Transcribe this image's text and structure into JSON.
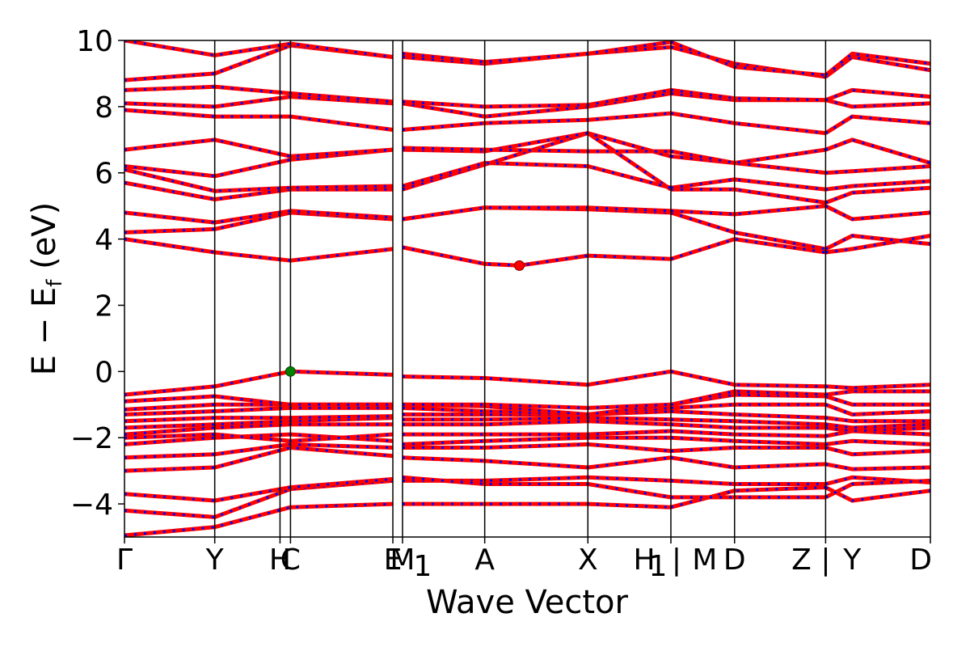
{
  "chart_data": {
    "type": "line",
    "xlabel": "Wave Vector",
    "ylabel_main": "E − E",
    "ylabel_sub": "f",
    "ylabel_unit": "(eV)",
    "ylim": [
      -5,
      10
    ],
    "yticks": [
      -4,
      -2,
      0,
      2,
      4,
      6,
      8,
      10
    ],
    "ytick_labels": [
      "−4",
      "−2",
      "0",
      "2",
      "4",
      "6",
      "8",
      "10"
    ],
    "xlim": [
      0,
      10
    ],
    "kpoint_lines": [
      1.12,
      1.93,
      2.06,
      3.33,
      3.45,
      4.47,
      5.75,
      6.78,
      7.57,
      8.7
    ],
    "kpoint_labels": [
      {
        "x": 0.0,
        "text": "Γ"
      },
      {
        "x": 1.12,
        "text": "Y"
      },
      {
        "x": 1.93,
        "text": "H"
      },
      {
        "x": 2.06,
        "text": "C"
      },
      {
        "x": 3.33,
        "text": "E"
      },
      {
        "x": 3.45,
        "text": "M"
      },
      {
        "x": 3.7,
        "text": "1"
      },
      {
        "x": 4.47,
        "text": "A"
      },
      {
        "x": 5.75,
        "text": "X"
      },
      {
        "x": 6.45,
        "text": "H"
      },
      {
        "x": 6.62,
        "text": "1"
      },
      {
        "x": 6.85,
        "text": "|"
      },
      {
        "x": 7.2,
        "text": "M"
      },
      {
        "x": 7.57,
        "text": "D"
      },
      {
        "x": 8.4,
        "text": "Z"
      },
      {
        "x": 8.7,
        "text": "|"
      },
      {
        "x": 9.03,
        "text": "Y"
      },
      {
        "x": 10.0,
        "text": "D"
      }
    ],
    "segments": [
      [
        0,
        3.33
      ],
      [
        3.45,
        6.78
      ],
      [
        6.78,
        8.7
      ],
      [
        8.7,
        10
      ]
    ],
    "band_colors": {
      "up": "#ff0000",
      "down": "#0000ff"
    },
    "cbm_marker": {
      "x": 4.9,
      "y": 3.2,
      "color": "#ff0000"
    },
    "vbm_marker": {
      "x": 2.06,
      "y": 0.0,
      "color": "#008000"
    },
    "bands": [
      {
        "x": [
          0,
          1.12,
          2.06,
          3.33,
          3.45,
          4.47,
          5.75,
          6.78,
          7.57,
          8.7,
          9.03,
          10
        ],
        "y": [
          -4.95,
          -4.7,
          -4.1,
          -4.0,
          -4.0,
          -4.0,
          -4.0,
          -4.1,
          -3.6,
          -3.5,
          -3.9,
          -3.6
        ]
      },
      {
        "x": [
          0,
          1.12,
          2.06,
          3.33,
          3.45,
          4.47,
          5.75,
          6.78,
          7.57,
          8.7,
          9.03,
          10
        ],
        "y": [
          -4.2,
          -4.4,
          -3.55,
          -3.3,
          -3.3,
          -3.3,
          -3.2,
          -3.3,
          -3.4,
          -3.4,
          -3.2,
          -3.35
        ]
      },
      {
        "x": [
          0,
          1.12,
          2.06,
          3.33,
          3.45,
          4.47,
          5.75,
          6.78,
          7.57,
          8.7,
          9.03,
          10
        ],
        "y": [
          -3.7,
          -3.9,
          -3.5,
          -3.25,
          -3.2,
          -3.4,
          -3.4,
          -3.8,
          -3.8,
          -3.8,
          -3.4,
          -3.3
        ]
      },
      {
        "x": [
          0,
          1.12,
          2.06,
          3.33,
          3.45,
          4.47,
          5.75,
          6.78,
          7.57,
          8.7,
          9.03,
          10
        ],
        "y": [
          -3.0,
          -2.9,
          -2.3,
          -2.55,
          -2.6,
          -2.7,
          -2.9,
          -2.6,
          -2.9,
          -2.8,
          -2.95,
          -2.9
        ]
      },
      {
        "x": [
          0,
          1.12,
          2.06,
          3.33,
          3.45,
          4.47,
          5.75,
          6.78,
          7.57,
          8.7,
          9.03,
          10
        ],
        "y": [
          -2.6,
          -2.5,
          -2.2,
          -2.3,
          -2.3,
          -2.3,
          -2.2,
          -2.4,
          -2.3,
          -2.3,
          -2.5,
          -2.4
        ]
      },
      {
        "x": [
          0,
          1.12,
          2.06,
          3.33,
          3.45,
          4.47,
          5.75,
          6.78,
          7.57,
          8.7,
          9.03,
          10
        ],
        "y": [
          -2.2,
          -2.0,
          -1.9,
          -2.1,
          -2.2,
          -2.1,
          -2.0,
          -2.0,
          -2.1,
          -2.2,
          -2.1,
          -2.2
        ]
      },
      {
        "x": [
          0,
          1.12,
          2.06,
          3.33,
          3.45,
          4.47,
          5.75,
          6.78,
          7.57,
          8.7,
          9.03,
          10
        ],
        "y": [
          -2.0,
          -1.9,
          -2.1,
          -1.9,
          -1.9,
          -1.9,
          -1.9,
          -1.8,
          -1.9,
          -1.95,
          -1.8,
          -1.9
        ]
      },
      {
        "x": [
          0,
          1.12,
          2.06,
          3.33,
          3.45,
          4.47,
          5.75,
          6.78,
          7.57,
          8.7,
          9.03,
          10
        ],
        "y": [
          -1.9,
          -1.7,
          -1.6,
          -1.6,
          -1.6,
          -1.6,
          -1.5,
          -1.6,
          -1.7,
          -1.7,
          -1.8,
          -1.7
        ]
      },
      {
        "x": [
          0,
          1.12,
          2.06,
          3.33,
          3.45,
          4.47,
          5.75,
          6.78,
          7.57,
          8.7,
          9.03,
          10
        ],
        "y": [
          -1.7,
          -1.6,
          -1.5,
          -1.4,
          -1.45,
          -1.45,
          -1.4,
          -1.45,
          -1.5,
          -1.6,
          -1.7,
          -1.6
        ]
      },
      {
        "x": [
          0,
          1.12,
          2.06,
          3.33,
          3.45,
          4.47,
          5.75,
          6.78,
          7.57,
          8.7,
          9.03,
          10
        ],
        "y": [
          -1.5,
          -1.4,
          -1.4,
          -1.35,
          -1.3,
          -1.3,
          -1.3,
          -1.2,
          -1.3,
          -1.4,
          -1.5,
          -1.5
        ]
      },
      {
        "x": [
          0,
          1.12,
          2.06,
          3.33,
          3.45,
          4.47,
          5.75,
          6.78,
          7.57,
          8.7,
          9.03,
          10
        ],
        "y": [
          -1.3,
          -1.2,
          -1.1,
          -1.1,
          -1.1,
          -1.2,
          -1.3,
          -1.1,
          -1.0,
          -1.0,
          -1.3,
          -1.2
        ]
      },
      {
        "x": [
          0,
          1.12,
          2.06,
          3.33,
          3.45,
          4.47,
          5.75,
          6.78,
          7.57,
          8.7,
          9.03,
          10
        ],
        "y": [
          -1.15,
          -1.0,
          -1.0,
          -1.0,
          -1.0,
          -1.05,
          -1.3,
          -1.0,
          -0.7,
          -0.75,
          -1.0,
          -1.0
        ]
      },
      {
        "x": [
          0,
          1.12,
          2.06,
          3.33,
          3.45,
          4.47,
          5.75,
          6.78,
          7.57,
          8.7,
          9.03,
          10
        ],
        "y": [
          -0.9,
          -0.75,
          -1.0,
          -1.0,
          -1.0,
          -1.0,
          -1.1,
          -1.0,
          -0.6,
          -0.7,
          -0.6,
          -0.6
        ]
      },
      {
        "x": [
          0,
          1.12,
          2.06,
          3.33,
          3.45,
          4.47,
          5.75,
          6.78,
          7.57,
          8.7,
          9.03,
          10
        ],
        "y": [
          -0.7,
          -0.45,
          0.0,
          -0.1,
          -0.15,
          -0.2,
          -0.4,
          0.0,
          -0.4,
          -0.45,
          -0.5,
          -0.4
        ]
      },
      {
        "x": [
          0,
          1.12,
          2.06,
          3.33,
          3.45,
          4.47,
          4.9,
          5.75,
          6.78,
          7.57,
          8.7,
          9.03,
          10
        ],
        "y": [
          4.0,
          3.6,
          3.35,
          3.7,
          3.75,
          3.25,
          3.2,
          3.5,
          3.4,
          4.0,
          3.6,
          3.7,
          4.1
        ]
      },
      {
        "x": [
          0,
          1.12,
          2.06,
          3.33,
          3.45,
          4.47,
          5.75,
          6.78,
          7.57,
          8.7,
          9.03,
          10
        ],
        "y": [
          4.2,
          4.3,
          4.8,
          4.6,
          4.6,
          4.95,
          4.9,
          4.8,
          4.2,
          3.7,
          4.1,
          3.85
        ]
      },
      {
        "x": [
          0,
          1.12,
          2.06,
          3.33,
          3.45,
          4.47,
          5.75,
          6.78,
          7.57,
          8.7,
          9.03,
          10
        ],
        "y": [
          4.8,
          4.5,
          4.85,
          4.65,
          4.6,
          4.95,
          4.95,
          4.85,
          4.75,
          5.0,
          4.6,
          4.8
        ]
      },
      {
        "x": [
          0,
          1.12,
          2.06,
          3.33,
          3.45,
          4.47,
          5.75,
          6.78,
          7.57,
          8.7,
          9.03,
          10
        ],
        "y": [
          5.7,
          5.2,
          5.5,
          5.5,
          5.5,
          6.25,
          7.2,
          5.5,
          5.5,
          5.1,
          5.4,
          5.55
        ]
      },
      {
        "x": [
          0,
          1.12,
          2.06,
          3.33,
          3.45,
          4.47,
          5.75,
          6.78,
          7.57,
          8.7,
          9.03,
          10
        ],
        "y": [
          6.1,
          5.45,
          5.55,
          5.6,
          5.6,
          6.3,
          6.2,
          5.55,
          5.8,
          5.5,
          5.6,
          5.75
        ]
      },
      {
        "x": [
          0,
          1.12,
          2.06,
          3.33,
          3.45,
          4.47,
          5.75,
          6.78,
          7.57,
          8.7,
          9.03,
          10
        ],
        "y": [
          6.2,
          5.9,
          6.4,
          6.7,
          6.7,
          6.65,
          7.2,
          6.5,
          6.3,
          6.0,
          6.05,
          6.2
        ]
      },
      {
        "x": [
          0,
          1.12,
          2.06,
          3.33,
          3.45,
          4.47,
          5.75,
          6.78,
          7.57,
          8.7,
          9.03,
          10
        ],
        "y": [
          6.7,
          7.0,
          6.5,
          6.7,
          6.75,
          6.7,
          6.65,
          6.65,
          6.3,
          6.7,
          7.0,
          6.3
        ]
      },
      {
        "x": [
          0,
          1.12,
          2.06,
          3.33,
          3.45,
          4.47,
          5.75,
          6.78,
          7.57,
          8.7,
          9.03,
          10
        ],
        "y": [
          7.9,
          7.7,
          7.7,
          7.3,
          7.3,
          7.5,
          7.6,
          7.8,
          7.5,
          7.2,
          7.7,
          7.5
        ]
      },
      {
        "x": [
          0,
          1.12,
          2.06,
          3.33,
          3.45,
          4.47,
          5.75,
          6.78,
          7.57,
          8.7,
          9.03,
          10
        ],
        "y": [
          8.1,
          8.0,
          8.3,
          8.1,
          8.1,
          7.7,
          8.0,
          8.4,
          8.2,
          8.2,
          8.0,
          8.1
        ]
      },
      {
        "x": [
          0,
          1.12,
          2.06,
          3.33,
          3.45,
          4.47,
          5.75,
          6.78,
          7.57,
          8.7,
          9.03,
          10
        ],
        "y": [
          8.5,
          8.6,
          8.4,
          8.15,
          8.15,
          8.0,
          8.05,
          8.5,
          8.25,
          8.2,
          8.5,
          8.3
        ]
      },
      {
        "x": [
          0,
          1.12,
          2.06,
          3.33,
          3.45,
          4.47,
          5.75,
          6.78,
          7.57,
          8.7,
          9.03,
          10
        ],
        "y": [
          8.8,
          9.0,
          9.85,
          9.5,
          9.5,
          9.3,
          9.6,
          9.8,
          9.3,
          8.9,
          9.5,
          9.1
        ]
      },
      {
        "x": [
          0,
          1.12,
          2.06,
          3.33,
          3.45,
          4.47,
          5.75,
          6.78,
          7.57,
          8.7,
          9.03,
          10
        ],
        "y": [
          10.0,
          9.55,
          9.9,
          9.5,
          9.6,
          9.35,
          9.6,
          9.95,
          9.2,
          8.95,
          9.6,
          9.3
        ]
      }
    ]
  }
}
